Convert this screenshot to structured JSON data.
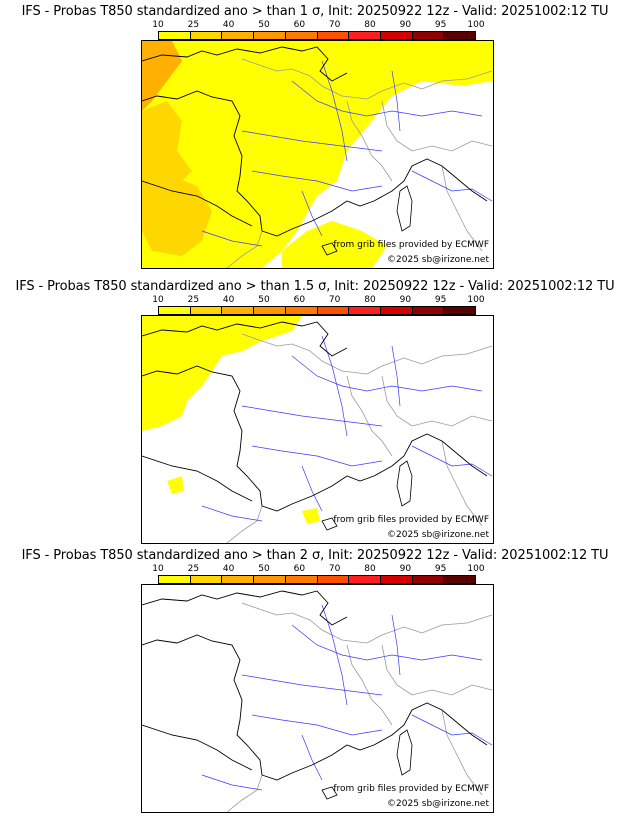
{
  "colorbar": {
    "ticks": [
      "10",
      "25",
      "40",
      "50",
      "60",
      "70",
      "80",
      "90",
      "95",
      "100"
    ],
    "colors": [
      "#ffff00",
      "#ffd700",
      "#ffb000",
      "#ff9800",
      "#ff7b00",
      "#ff5000",
      "#ff1f1f",
      "#d40000",
      "#8f0000",
      "#5a0000"
    ]
  },
  "panels": [
    {
      "title": "IFS - Probas T850  standardized ano > than 1 σ, Init: 20250922 12z - Valid: 20251002:12 TU",
      "credit_line1": "from grib files provided by ECMWF",
      "credit_line2": "©2025 sb@irizone.net",
      "coverage": "high"
    },
    {
      "title": "IFS - Probas T850  standardized ano > than 1.5 σ, Init: 20250922 12z - Valid: 20251002:12 TU",
      "credit_line1": "from grib files provided by ECMWF",
      "credit_line2": "©2025 sb@irizone.net",
      "coverage": "medium"
    },
    {
      "title": "IFS - Probas T850  standardized ano > than 2 σ, Init: 20250922 12z - Valid: 20251002:12 TU",
      "credit_line1": "from grib files provided by ECMWF",
      "credit_line2": "©2025 sb@irizone.net",
      "coverage": "none"
    }
  ]
}
